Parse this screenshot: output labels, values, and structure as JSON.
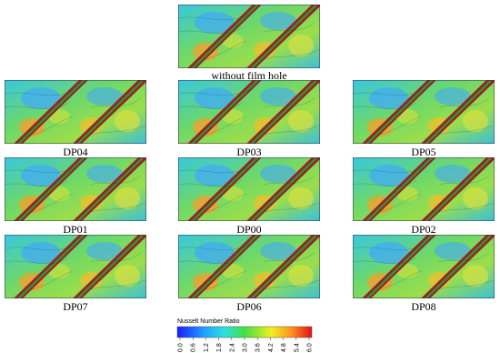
{
  "top": {
    "label": "without film hole"
  },
  "panels": [
    "DP04",
    "DP03",
    "DP05",
    "DP01",
    "DP00",
    "DP02",
    "DP07",
    "DP06",
    "DP08"
  ],
  "colorbar": {
    "title": "Nusselt Number Ratio",
    "range": [
      0,
      6
    ],
    "ticks": [
      {
        "value": 0,
        "label": "0.0"
      },
      {
        "value": 0.6,
        "label": "0.6"
      },
      {
        "value": 1.2,
        "label": "1.2"
      },
      {
        "value": 1.8,
        "label": "1.8"
      },
      {
        "value": 2.4,
        "label": "2.4"
      },
      {
        "value": 3,
        "label": "3.0"
      },
      {
        "value": 3.6,
        "label": "3.6"
      },
      {
        "value": 4.2,
        "label": "4.2"
      },
      {
        "value": 4.8,
        "label": "4.8"
      },
      {
        "value": 5.4,
        "label": "5.4"
      },
      {
        "value": 6,
        "label": "6.0"
      }
    ]
  }
}
